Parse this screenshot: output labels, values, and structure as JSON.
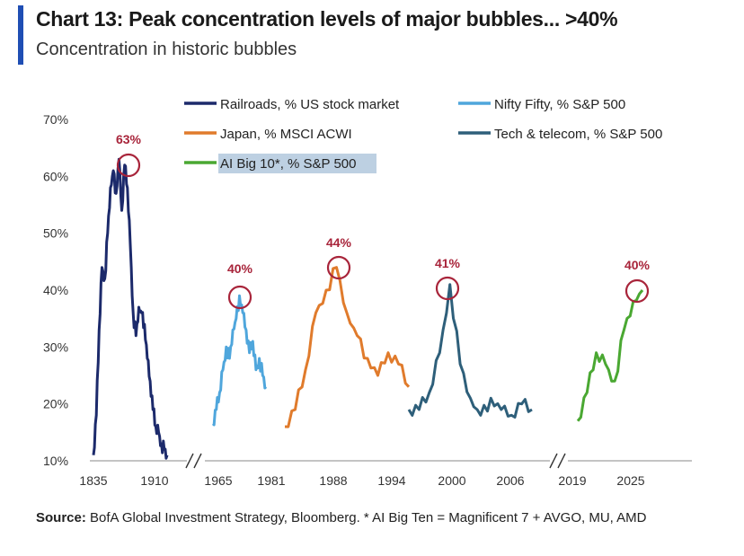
{
  "header": {
    "title": "Chart 13: Peak concentration levels of major bubbles... >40%",
    "subtitle": "Concentration in historic bubbles"
  },
  "source": {
    "label": "Source:",
    "text": "BofA Global Investment Strategy, Bloomberg. * AI Big Ten = Magnificent 7 + AVGO, MU, AMD"
  },
  "colors": {
    "railroads": "#1c2a6b",
    "nifty": "#4fa6dc",
    "japan": "#e07b2c",
    "tech": "#2e5f7a",
    "ai": "#4aa832",
    "peak_circle": "#a8243a"
  },
  "chart_data": {
    "type": "line",
    "title": "Chart 13: Peak concentration levels of major bubbles... >40%",
    "subtitle": "Concentration in historic bubbles",
    "y_ticks": [
      "10%",
      "20%",
      "30%",
      "40%",
      "50%",
      "60%",
      "70%"
    ],
    "ylim": [
      10,
      70
    ],
    "x_ticks": [
      "1835",
      "1910",
      "1965",
      "1981",
      "1988",
      "1994",
      "2000",
      "2006",
      "2019",
      "2025"
    ],
    "axis_breaks": [
      "1910-1965",
      "2006-2019"
    ],
    "legend": [
      {
        "name": "Railroads, % US stock market",
        "color": "#1c2a6b"
      },
      {
        "name": "Nifty Fifty, % S&P 500",
        "color": "#4fa6dc"
      },
      {
        "name": "Japan, % MSCI ACWI",
        "color": "#e07b2c"
      },
      {
        "name": "Tech & telecom, % S&P 500",
        "color": "#2e5f7a"
      },
      {
        "name": "AI Big 10*, % S&P 500",
        "color": "#4aa832"
      }
    ],
    "peak_labels": [
      "63%",
      "40%",
      "44%",
      "41%",
      "40%"
    ],
    "series": [
      {
        "name": "Railroads, % US stock market",
        "color": "#1c2a6b",
        "x": [
          1835,
          1838,
          1841,
          1844,
          1847,
          1850,
          1853,
          1856,
          1859,
          1862,
          1865,
          1868,
          1871,
          1874,
          1877,
          1880,
          1883,
          1886,
          1889,
          1892,
          1895,
          1898,
          1901,
          1904,
          1907,
          1910,
          1913
        ],
        "values": [
          11,
          18,
          33,
          44,
          42,
          50,
          58,
          61,
          57,
          63,
          54,
          62,
          58,
          48,
          36,
          32,
          37,
          36,
          34,
          28,
          24,
          19,
          16,
          15,
          13,
          12,
          11
        ]
      },
      {
        "name": "Nifty Fifty, % S&P 500",
        "color": "#4fa6dc",
        "x": [
          1965,
          1966,
          1967,
          1968,
          1969,
          1970,
          1971,
          1972,
          1973,
          1974,
          1975,
          1976,
          1977,
          1978,
          1979,
          1980,
          1981
        ],
        "values": [
          16.5,
          19,
          22,
          26,
          30,
          28,
          33,
          35,
          39,
          36,
          33,
          29,
          31,
          26,
          28,
          25,
          23
        ]
      },
      {
        "name": "Japan, % MSCI ACWI",
        "color": "#e07b2c",
        "x": [
          1984,
          1985,
          1986,
          1987,
          1988,
          1989,
          1990,
          1991,
          1992,
          1993,
          1994,
          1995,
          1996
        ],
        "values": [
          16,
          19,
          26,
          36,
          40,
          44,
          36,
          32,
          28,
          25,
          29,
          27,
          23
        ]
      },
      {
        "name": "Tech & telecom, % S&P 500",
        "color": "#2e5f7a",
        "x": [
          1996,
          1997,
          1998,
          1999,
          2000,
          2001,
          2002,
          2003,
          2004,
          2005,
          2006,
          2007,
          2008
        ],
        "values": [
          19,
          19,
          22,
          29,
          41,
          27,
          21,
          18,
          21,
          19,
          18,
          20,
          19
        ]
      },
      {
        "name": "AI Big 10*, % S&P 500",
        "color": "#4aa832",
        "x": [
          2019,
          2020,
          2021,
          2022,
          2023,
          2024,
          2025,
          2026
        ],
        "values": [
          17,
          22,
          29,
          27,
          24,
          33,
          38,
          40
        ]
      }
    ]
  }
}
